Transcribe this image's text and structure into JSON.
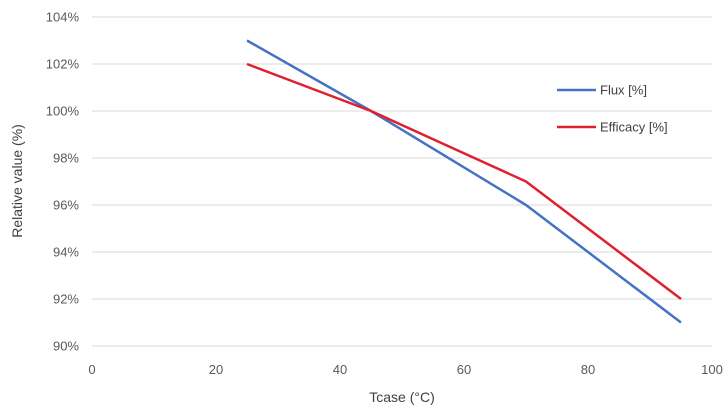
{
  "chart_data": {
    "type": "line",
    "title": "",
    "xlabel": "Tcase (°C)",
    "ylabel": "Relative value (%)",
    "xlim": [
      0,
      100
    ],
    "ylim": [
      90,
      104
    ],
    "x_ticks": [
      0,
      20,
      40,
      60,
      80,
      100
    ],
    "y_ticks": [
      90,
      92,
      94,
      96,
      98,
      100,
      102,
      104
    ],
    "x_tick_labels": [
      "0",
      "20",
      "40",
      "60",
      "80",
      "100"
    ],
    "y_tick_labels": [
      "90%",
      "92%",
      "94%",
      "96%",
      "98%",
      "100%",
      "102%",
      "104%"
    ],
    "grid": "horizontal",
    "legend_position": "right",
    "series": [
      {
        "name": "Flux [%]",
        "color": "#4472c4",
        "x": [
          25,
          45,
          70,
          95
        ],
        "y": [
          103,
          100,
          96,
          91
        ]
      },
      {
        "name": "Efficacy [%]",
        "color": "#e0202e",
        "x": [
          25,
          45,
          70,
          95
        ],
        "y": [
          102,
          100,
          97,
          92
        ]
      }
    ]
  }
}
